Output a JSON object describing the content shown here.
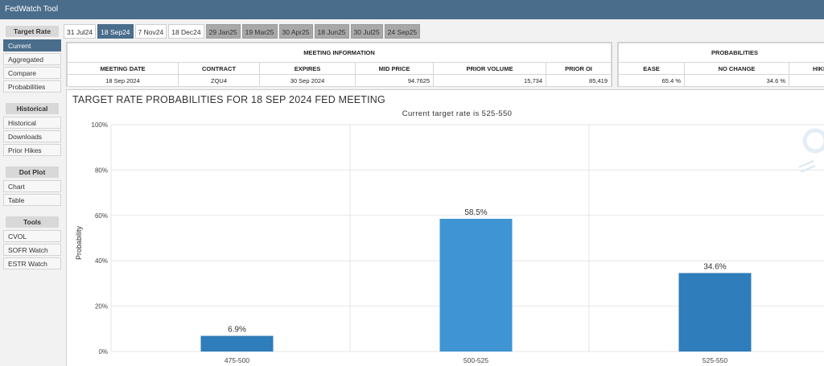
{
  "app": {
    "title": "FedWatch Tool"
  },
  "sidebar": {
    "sections": [
      {
        "label": "Target Rate",
        "items": [
          "Current",
          "Aggregated",
          "Compare",
          "Probabilities"
        ]
      },
      {
        "label": "Historical",
        "items": [
          "Historical",
          "Downloads",
          "Prior Hikes"
        ]
      },
      {
        "label": "Dot Plot",
        "items": [
          "Chart",
          "Table"
        ]
      },
      {
        "label": "Tools",
        "items": [
          "CVOL",
          "SOFR Watch",
          "ESTR Watch"
        ]
      }
    ],
    "active_item": "Current"
  },
  "tabs": [
    {
      "label": "31 Jul24",
      "state": "normal"
    },
    {
      "label": "18 Sep24",
      "state": "active"
    },
    {
      "label": "7 Nov24",
      "state": "normal"
    },
    {
      "label": "18 Dec24",
      "state": "normal"
    },
    {
      "label": "29 Jan25",
      "state": "grey"
    },
    {
      "label": "19 Mar25",
      "state": "grey"
    },
    {
      "label": "30 Apr25",
      "state": "grey"
    },
    {
      "label": "18 Jun25",
      "state": "grey"
    },
    {
      "label": "30 Jul25",
      "state": "grey"
    },
    {
      "label": "24 Sep25",
      "state": "grey"
    }
  ],
  "meeting_info": {
    "group_label": "MEETING INFORMATION",
    "headers": [
      "MEETING DATE",
      "CONTRACT",
      "EXPIRES",
      "MID PRICE",
      "PRIOR VOLUME",
      "PRIOR OI"
    ],
    "row": [
      "18 Sep 2024",
      "ZQU4",
      "30 Sep 2024",
      "94.7625",
      "15,734",
      "85,419"
    ]
  },
  "probabilities": {
    "group_label": "PROBABILITIES",
    "headers": [
      "EASE",
      "NO CHANGE",
      "HIKE"
    ],
    "row": [
      "65.4 %",
      "34.6 %",
      ""
    ]
  },
  "chart": {
    "title": "TARGET RATE PROBABILITIES FOR 18 SEP 2024 FED MEETING",
    "subtitle": "Current target rate is 525-550"
  },
  "chart_data": {
    "type": "bar",
    "categories": [
      "475-500",
      "500-525",
      "525-550"
    ],
    "values": [
      6.9,
      58.5,
      34.6
    ],
    "value_labels": [
      "6.9%",
      "58.5%",
      "34.6%"
    ],
    "bar_colors": [
      "#2f7dba",
      "#3f94d3",
      "#2f7dba"
    ],
    "ylabel": "Probability",
    "ylim": [
      0,
      100
    ],
    "yticks": [
      "0%",
      "20%",
      "40%",
      "60%",
      "80%",
      "100%"
    ],
    "grid": true
  }
}
